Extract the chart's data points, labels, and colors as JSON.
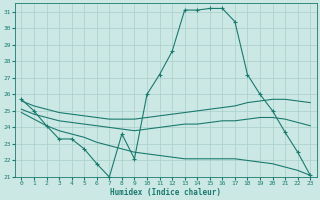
{
  "xlabel": "Humidex (Indice chaleur)",
  "xlim": [
    -0.5,
    23.5
  ],
  "ylim": [
    21,
    31.5
  ],
  "yticks": [
    21,
    22,
    23,
    24,
    25,
    26,
    27,
    28,
    29,
    30,
    31
  ],
  "xticks": [
    0,
    1,
    2,
    3,
    4,
    5,
    6,
    7,
    8,
    9,
    10,
    11,
    12,
    13,
    14,
    15,
    16,
    17,
    18,
    19,
    20,
    21,
    22,
    23
  ],
  "bg_color": "#cce8e5",
  "grid_color": "#aacfcc",
  "line_color": "#1a7a6e",
  "tick_color": "#1a7a6e",
  "lines": [
    {
      "x": [
        0,
        1,
        2,
        3,
        4,
        5,
        6,
        7,
        8,
        9,
        10,
        11,
        12,
        13,
        14,
        15,
        16,
        17,
        18,
        19,
        20,
        21,
        22,
        23
      ],
      "y": [
        25.7,
        25.0,
        24.1,
        23.3,
        23.3,
        22.7,
        21.8,
        21.0,
        23.6,
        22.1,
        26.0,
        27.2,
        28.6,
        31.1,
        31.1,
        31.2,
        31.2,
        30.4,
        27.2,
        26.0,
        25.0,
        23.7,
        22.5,
        21.1
      ],
      "marker": true
    },
    {
      "x": [
        0,
        1,
        2,
        3,
        4,
        5,
        6,
        7,
        8,
        9,
        10,
        11,
        12,
        13,
        14,
        15,
        16,
        17,
        18,
        19,
        20,
        21,
        22,
        23
      ],
      "y": [
        25.6,
        25.3,
        25.1,
        24.9,
        24.8,
        24.7,
        24.6,
        24.5,
        24.5,
        24.5,
        24.6,
        24.7,
        24.8,
        24.9,
        25.0,
        25.1,
        25.2,
        25.3,
        25.5,
        25.6,
        25.7,
        25.7,
        25.6,
        25.5
      ],
      "marker": false
    },
    {
      "x": [
        0,
        1,
        2,
        3,
        4,
        5,
        6,
        7,
        8,
        9,
        10,
        11,
        12,
        13,
        14,
        15,
        16,
        17,
        18,
        19,
        20,
        21,
        22,
        23
      ],
      "y": [
        25.1,
        24.8,
        24.6,
        24.4,
        24.3,
        24.2,
        24.1,
        24.0,
        23.9,
        23.8,
        23.9,
        24.0,
        24.1,
        24.2,
        24.2,
        24.3,
        24.4,
        24.4,
        24.5,
        24.6,
        24.6,
        24.5,
        24.3,
        24.1
      ],
      "marker": false
    },
    {
      "x": [
        0,
        1,
        2,
        3,
        4,
        5,
        6,
        7,
        8,
        9,
        10,
        11,
        12,
        13,
        14,
        15,
        16,
        17,
        18,
        19,
        20,
        21,
        22,
        23
      ],
      "y": [
        24.9,
        24.5,
        24.1,
        23.8,
        23.6,
        23.4,
        23.1,
        22.9,
        22.7,
        22.5,
        22.4,
        22.3,
        22.2,
        22.1,
        22.1,
        22.1,
        22.1,
        22.1,
        22.0,
        21.9,
        21.8,
        21.6,
        21.4,
        21.1
      ],
      "marker": false
    }
  ]
}
